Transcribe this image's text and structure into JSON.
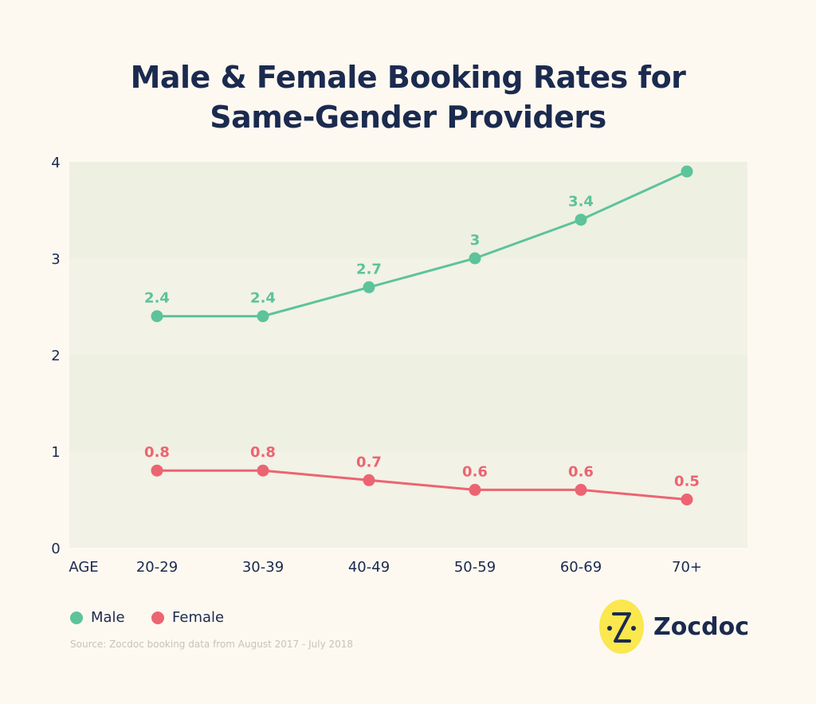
{
  "chart_data": {
    "type": "line",
    "title": [
      "Male & Female Booking Rates for",
      "Same-Gender Providers"
    ],
    "xlabel": "AGE",
    "categories": [
      "20-29",
      "30-39",
      "40-49",
      "50-59",
      "60-69",
      "70+"
    ],
    "ylim": [
      0,
      4
    ],
    "yticks": [
      "0",
      "1",
      "2",
      "3",
      "4"
    ],
    "series": [
      {
        "name": "Male",
        "color": "#5cc39b",
        "values": [
          2.4,
          2.4,
          2.7,
          3.0,
          3.4,
          3.9
        ],
        "labels": [
          "2.4",
          "2.4",
          "2.7",
          "3",
          "3.4",
          ""
        ]
      },
      {
        "name": "Female",
        "color": "#ec6471",
        "values": [
          0.8,
          0.8,
          0.7,
          0.6,
          0.6,
          0.5
        ],
        "labels": [
          "0.8",
          "0.8",
          "0.7",
          "0.6",
          "0.6",
          "0.5"
        ]
      }
    ],
    "grid": "alternating bands",
    "legend": "bottom-left"
  },
  "source": "Source: Zocdoc booking data from August 2017 - July 2018",
  "logo": {
    "text": "Zocdoc",
    "color": "#fbe74e"
  }
}
